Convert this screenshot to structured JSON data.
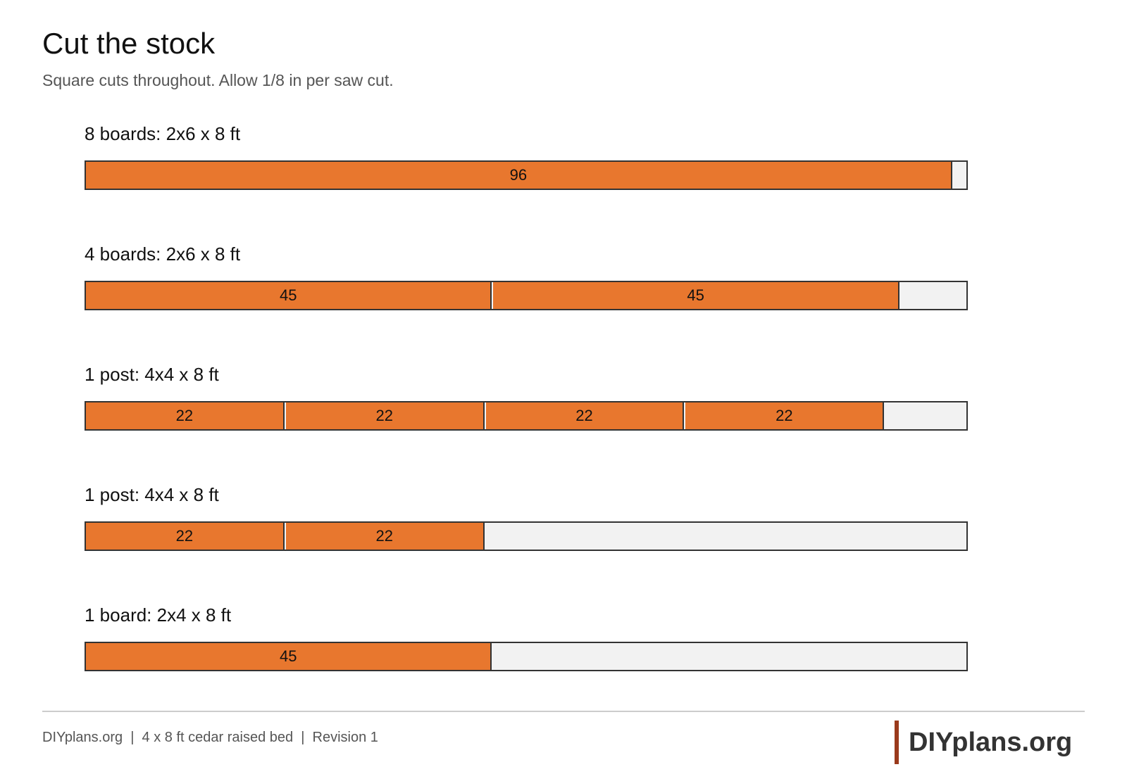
{
  "header": {
    "title": "Cut the stock",
    "subtitle": "Square cuts throughout. Allow 1/8 in per saw cut."
  },
  "boards": [
    {
      "label": "8 boards: 2x6 x 8 ft",
      "cuts": [
        96
      ]
    },
    {
      "label": "4 boards: 2x6 x 8 ft",
      "cuts": [
        45,
        45
      ]
    },
    {
      "label": "1 post: 4x4 x 8 ft",
      "cuts": [
        22,
        22,
        22,
        22
      ]
    },
    {
      "label": "1 post: 4x4 x 8 ft",
      "cuts": [
        22,
        22
      ]
    },
    {
      "label": "1 board: 2x4 x 8 ft",
      "cuts": [
        45
      ]
    }
  ],
  "footer": {
    "text": "DIYplans.org  |  4 x 8 ft cedar raised bed  |  Revision 1",
    "logo": "DIYplans.org"
  }
}
